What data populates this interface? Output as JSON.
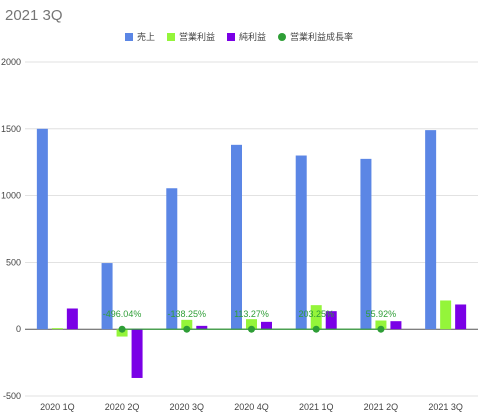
{
  "chart_data": {
    "type": "bar",
    "title": "2021 3Q",
    "categories": [
      "2020 1Q",
      "2020 2Q",
      "2020 3Q",
      "2020 4Q",
      "2021 1Q",
      "2021 2Q",
      "2021 3Q"
    ],
    "series": [
      {
        "name": "売上",
        "type": "bar",
        "color": "#5b86e5",
        "values": [
          1500,
          495,
          1055,
          1380,
          1300,
          1275,
          1490
        ]
      },
      {
        "name": "営業利益",
        "type": "bar",
        "color": "#94f53a",
        "values": [
          8,
          -55,
          70,
          75,
          180,
          65,
          215
        ]
      },
      {
        "name": "純利益",
        "type": "bar",
        "color": "#7a00e6",
        "values": [
          155,
          -365,
          25,
          55,
          135,
          60,
          185
        ]
      },
      {
        "name": "営業利益成長率",
        "type": "line",
        "color": "#2e9e36",
        "values": [
          null,
          -496.04,
          -138.25,
          113.27,
          203.25,
          55.92,
          null
        ],
        "labels": [
          null,
          "-496.04%",
          "-138.25%",
          "113.27%",
          "203.25%",
          "55.92%",
          null
        ]
      }
    ],
    "ylim": [
      -500,
      2000
    ],
    "yticks": [
      -500,
      0,
      500,
      1000,
      1500,
      2000
    ],
    "xlabel": "",
    "ylabel": "",
    "grid": true,
    "legend_position": "top-center"
  }
}
